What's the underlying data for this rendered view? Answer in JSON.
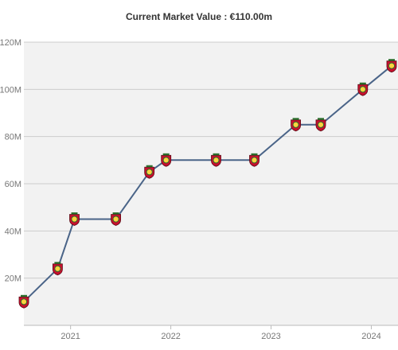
{
  "chart_data": {
    "type": "line",
    "title": "Current Market Value : €110.00m",
    "xlabel": "",
    "ylabel": "",
    "ylim": [
      0,
      120
    ],
    "y_ticks": [
      20,
      40,
      60,
      80,
      100,
      120
    ],
    "y_tick_labels": [
      "20M",
      "40M",
      "60M",
      "80M",
      "100M",
      "120M"
    ],
    "x_ticks": [
      "2021-01-01",
      "2022-01-01",
      "2023-01-01",
      "2024-01-01"
    ],
    "x_tick_labels": [
      "2021",
      "2022",
      "2023",
      "2024"
    ],
    "xlim": [
      "2020-07-15",
      "2024-03-15"
    ],
    "grid": true,
    "legend": "none",
    "series": [
      {
        "x": [
          "2020-07-15",
          "2020-11-15",
          "2021-01-15",
          "2021-06-15",
          "2021-10-15",
          "2021-12-15",
          "2022-06-15",
          "2022-11-01",
          "2023-04-01",
          "2023-07-01",
          "2023-12-01",
          "2024-03-15"
        ],
        "values": [
          10,
          24,
          45,
          45,
          65,
          70,
          70,
          70,
          85,
          85,
          100,
          110
        ]
      }
    ],
    "colors": {
      "line": "#4a6488",
      "grid": "#cccccc",
      "plot_background": "#f2f2f2",
      "marker_border": "#c8102e",
      "marker_inner": "#ffd23f"
    },
    "marker_icon": "club-crest-icon"
  }
}
